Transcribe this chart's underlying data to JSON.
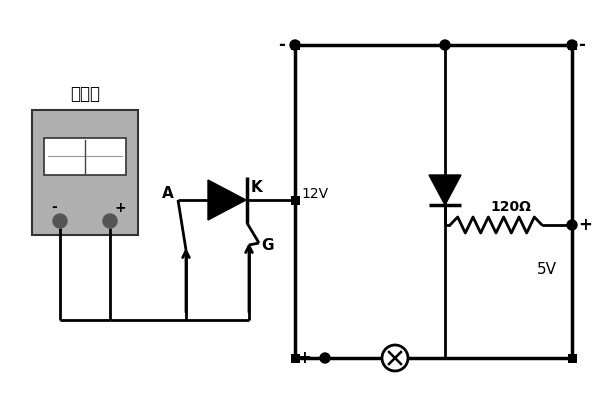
{
  "bg_color": "#ffffff",
  "line_color": "#000000",
  "lw": 2.0,
  "multimeter_label": "万用表",
  "label_A": "A",
  "label_K": "K",
  "label_G": "G",
  "label_12V": "12V",
  "label_5V": "5V",
  "label_120ohm": "120Ω",
  "label_plus1": "+",
  "label_plus2": "+",
  "label_minus1": "-",
  "label_minus2": "-",
  "fig_width": 6.0,
  "fig_height": 4.0,
  "dpi": 100
}
